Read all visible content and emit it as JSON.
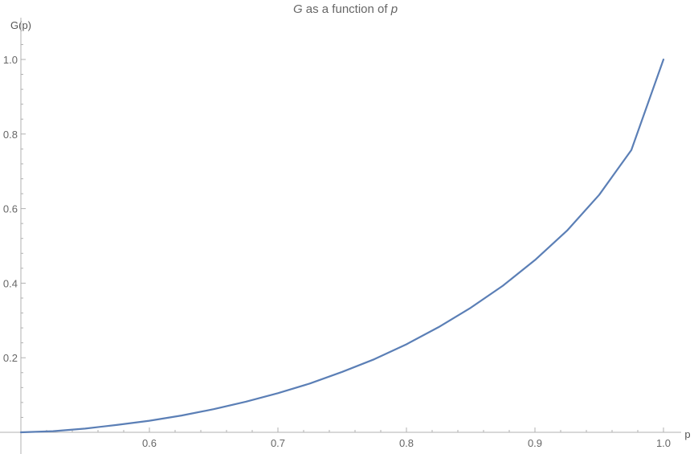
{
  "chart_data": {
    "type": "line",
    "title": {
      "parts": [
        {
          "text": "G",
          "italic": true
        },
        {
          "text": " as a function of ",
          "italic": false
        },
        {
          "text": "p",
          "italic": true
        }
      ]
    },
    "xlabel": "p",
    "ylabel": "G(p)",
    "xlim": [
      0.5,
      1.0
    ],
    "ylim": [
      0.0,
      1.0
    ],
    "x_ticks": [
      {
        "value": 0.6,
        "label": "0.6"
      },
      {
        "value": 0.7,
        "label": "0.7"
      },
      {
        "value": 0.8,
        "label": "0.8"
      },
      {
        "value": 0.9,
        "label": "0.9"
      },
      {
        "value": 1.0,
        "label": "1.0"
      }
    ],
    "y_ticks": [
      {
        "value": 0.2,
        "label": "0.2"
      },
      {
        "value": 0.4,
        "label": "0.4"
      },
      {
        "value": 0.6,
        "label": "0.6"
      },
      {
        "value": 0.8,
        "label": "0.8"
      },
      {
        "value": 1.0,
        "label": "1.0"
      }
    ],
    "grid": false,
    "line_color": "#5b7fb6",
    "axis_color": "#b0b0b0",
    "series": [
      {
        "x": [
          0.5,
          0.525,
          0.55,
          0.575,
          0.6,
          0.625,
          0.65,
          0.675,
          0.7,
          0.725,
          0.75,
          0.775,
          0.8,
          0.825,
          0.85,
          0.875,
          0.9,
          0.925,
          0.95,
          0.975,
          1.0
        ],
        "y": [
          0.0,
          0.003,
          0.01,
          0.02,
          0.031,
          0.045,
          0.062,
          0.082,
          0.105,
          0.131,
          0.162,
          0.196,
          0.236,
          0.282,
          0.334,
          0.393,
          0.462,
          0.541,
          0.637,
          0.757,
          1.0
        ]
      }
    ]
  }
}
